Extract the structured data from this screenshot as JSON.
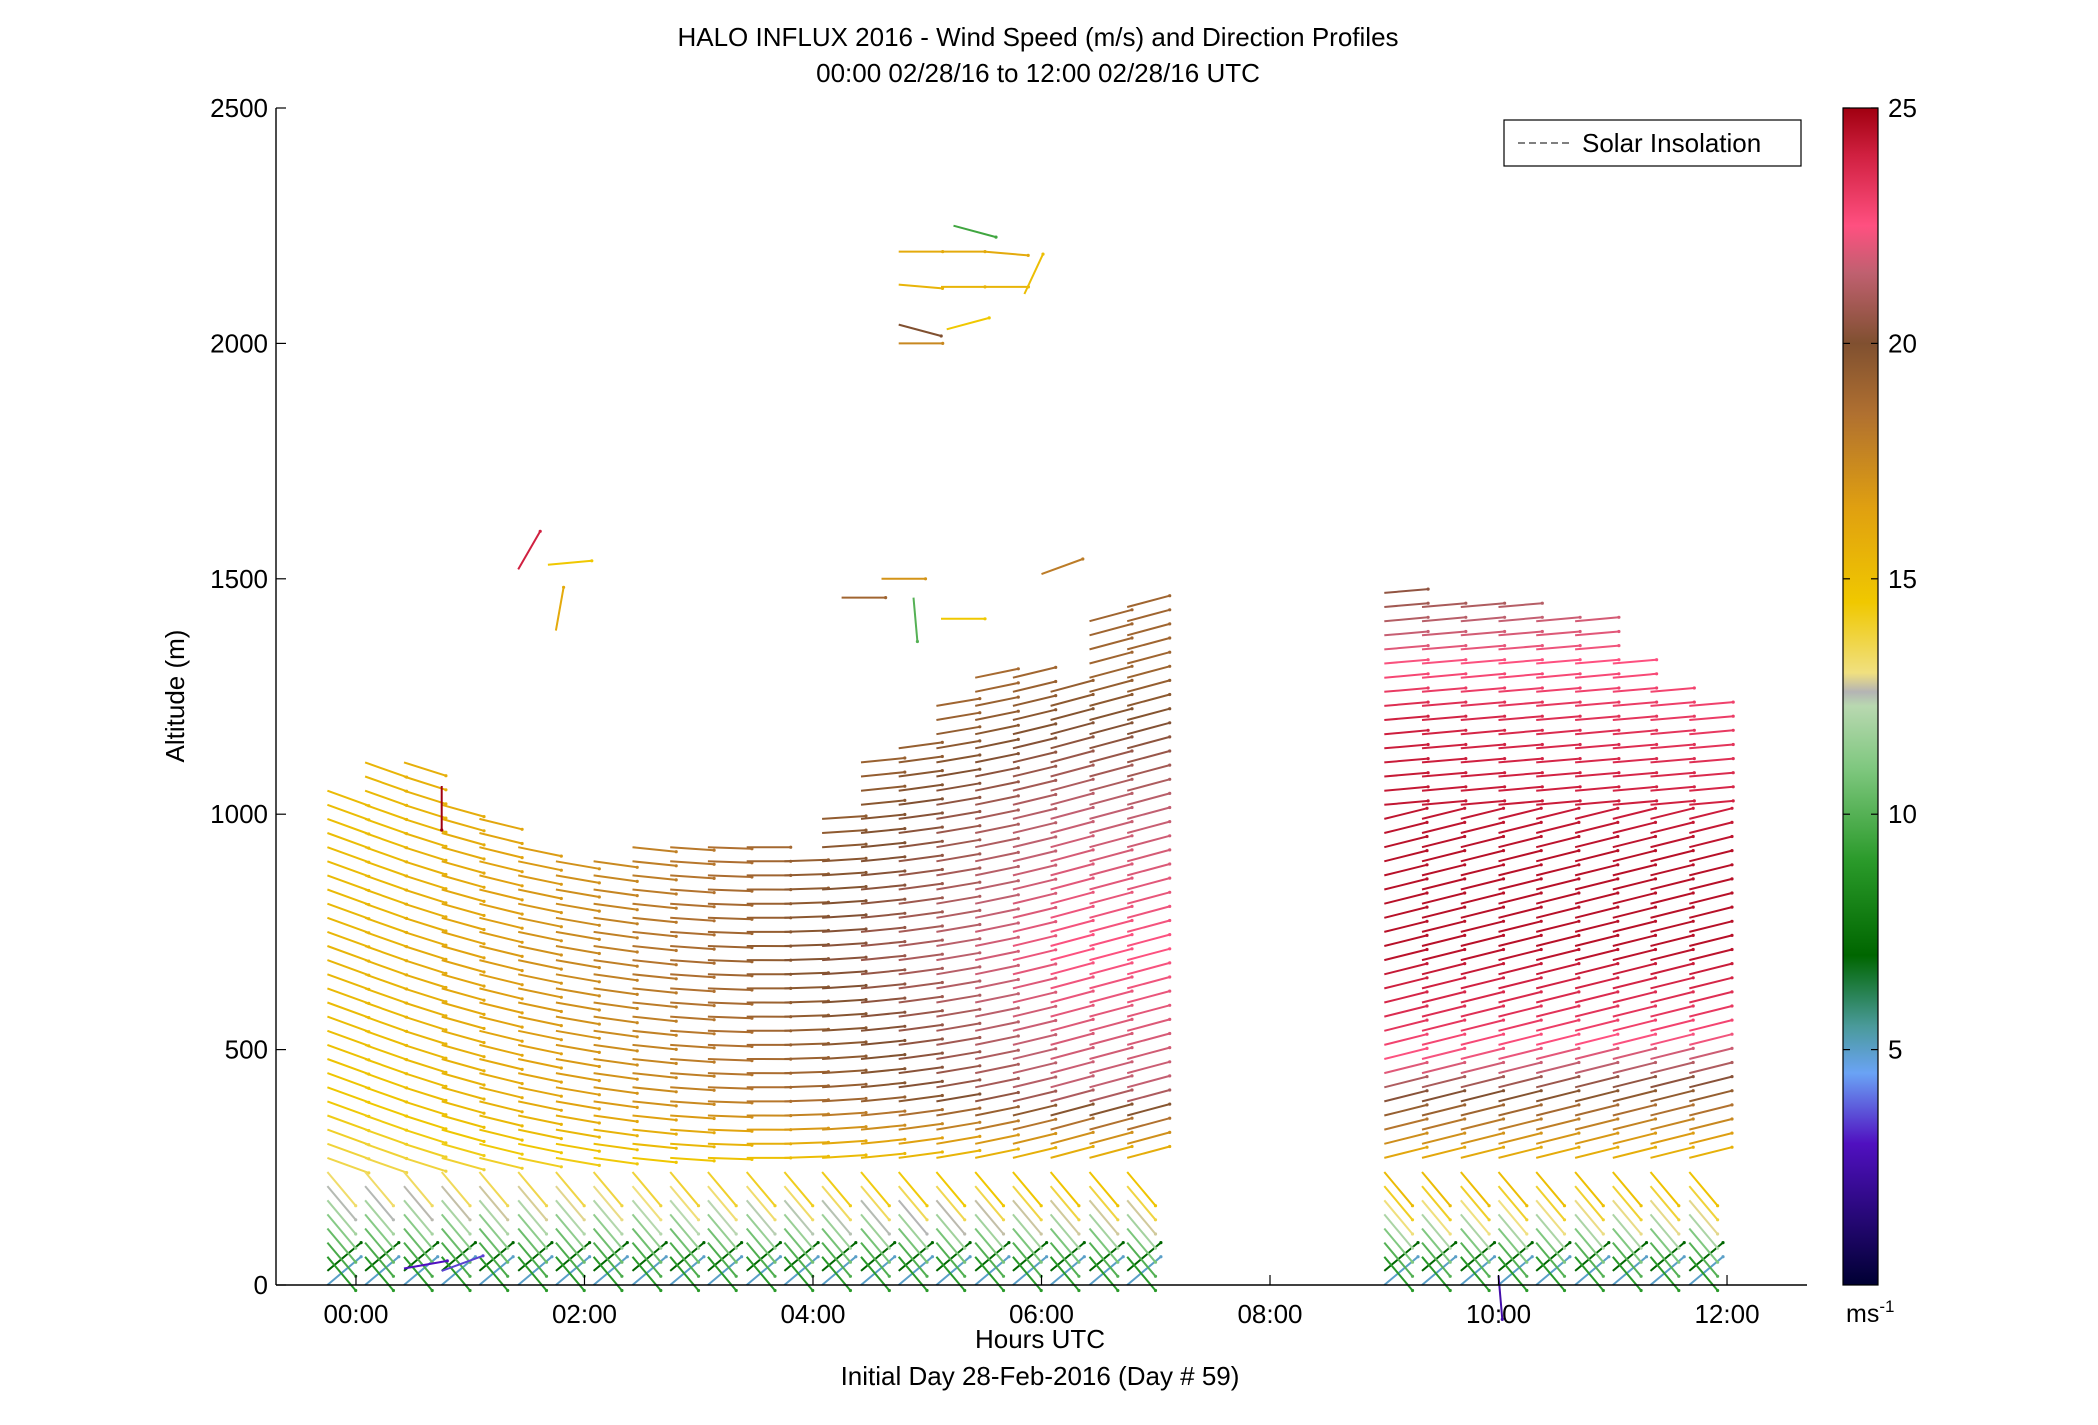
{
  "chart_data": {
    "type": "wind-barb-profile",
    "title": "HALO INFLUX 2016 - Wind Speed (m/s) and Direction Profiles",
    "subtitle": "00:00 02/28/16 to 12:00 02/28/16  UTC",
    "xlabel": "Hours UTC",
    "xlabel2": "Initial Day 28-Feb-2016 (Day # 59)",
    "ylabel": "Altitude (m)",
    "xlim_hours": [
      -0.7,
      12.7
    ],
    "ylim": [
      0,
      2500
    ],
    "xticks": [
      0,
      2,
      4,
      6,
      8,
      10,
      12
    ],
    "xtick_labels": [
      "00:00",
      "02:00",
      "04:00",
      "06:00",
      "08:00",
      "10:00",
      "12:00"
    ],
    "yticks": [
      0,
      500,
      1000,
      1500,
      2000,
      2500
    ],
    "ytick_labels": [
      "0",
      "500",
      "1000",
      "1500",
      "2000",
      "2500"
    ],
    "legend": {
      "label": "Solar Insolation",
      "style": "dashed",
      "color": "#808080",
      "position": "top-right"
    },
    "colorbar": {
      "range": [
        0,
        25
      ],
      "ticks": [
        5,
        10,
        15,
        20,
        25
      ],
      "tick_labels": [
        "5",
        "10",
        "15",
        "20",
        "25"
      ],
      "unit_label": "ms",
      "unit_exponent": "-1",
      "stops": [
        {
          "v": 0,
          "c": "#000033"
        },
        {
          "v": 3,
          "c": "#5010c0"
        },
        {
          "v": 4.5,
          "c": "#6aa3f5"
        },
        {
          "v": 5.5,
          "c": "#4a9a9a"
        },
        {
          "v": 7,
          "c": "#006600"
        },
        {
          "v": 9,
          "c": "#2a9a2a"
        },
        {
          "v": 11,
          "c": "#80c880"
        },
        {
          "v": 12.3,
          "c": "#b8d8b0"
        },
        {
          "v": 12.6,
          "c": "#b4b4b4"
        },
        {
          "v": 13,
          "c": "#f0e080"
        },
        {
          "v": 14.5,
          "c": "#f0c800"
        },
        {
          "v": 16.5,
          "c": "#e0a010"
        },
        {
          "v": 18.5,
          "c": "#b07030"
        },
        {
          "v": 20,
          "c": "#805030"
        },
        {
          "v": 21.5,
          "c": "#c06070"
        },
        {
          "v": 22.5,
          "c": "#ff5080"
        },
        {
          "v": 24,
          "c": "#d02040"
        },
        {
          "v": 25,
          "c": "#a00010"
        }
      ]
    },
    "profile_times_hours": [
      -0.25,
      0.08,
      0.42,
      0.75,
      1.08,
      1.42,
      1.75,
      2.08,
      2.42,
      2.75,
      3.08,
      3.42,
      3.75,
      4.08,
      4.42,
      4.75,
      5.08,
      5.42,
      5.75,
      6.08,
      6.42,
      6.75,
      9.0,
      9.33,
      9.67,
      10.0,
      10.33,
      10.67,
      11.0,
      11.33,
      11.67
    ],
    "profile_tops_m": [
      1070,
      1110,
      1125,
      1045,
      1000,
      950,
      910,
      910,
      940,
      930,
      950,
      940,
      920,
      1000,
      1110,
      1150,
      1240,
      1290,
      1290,
      1280,
      1410,
      1450,
      1490,
      1450,
      1450,
      1450,
      1410,
      1410,
      1330,
      1285,
      1250
    ],
    "barb_spacing_m": 30,
    "speed_model": {
      "segment_1": {
        "t_range_hours": [
          -0.7,
          7.0
        ],
        "levels_m": [
          0,
          60,
          250,
          400,
          700,
          1000,
          1300
        ],
        "speed_at_0h": [
          5,
          9,
          13.5,
          14.5,
          15.5,
          15,
          16
        ],
        "speed_at_6h": [
          5,
          9,
          15,
          21.5,
          22.5,
          21.5,
          19
        ]
      },
      "segment_2": {
        "t_range_hours": [
          8.5,
          12.0
        ],
        "levels_m": [
          0,
          60,
          150,
          250,
          350,
          450,
          550,
          700,
          900,
          1200,
          1500
        ],
        "speed_at_9h": [
          5,
          9,
          12,
          15.5,
          19,
          22,
          23.5,
          24.5,
          24.5,
          24,
          20
        ],
        "speed_at_12h": [
          5,
          9,
          12,
          15,
          18,
          21,
          23,
          24.5,
          24.5,
          23,
          22
        ]
      }
    },
    "direction_model_deg": {
      "near_surface_below_60m": 230,
      "low_levels_below_250m": 320,
      "segment_1_at_0h": 290,
      "segment_1_at_6h": 255,
      "segment_2_mid": 256,
      "segment_2_above_1000m": 265
    },
    "isolated_barbs": [
      {
        "t": 0.75,
        "h": 1060,
        "speed": 25,
        "dir": 0
      },
      {
        "t": 1.42,
        "h": 1520,
        "speed": 24,
        "dir": 210
      },
      {
        "t": 1.68,
        "h": 1530,
        "speed": 14.5,
        "dir": 265
      },
      {
        "t": 1.75,
        "h": 1390,
        "speed": 16,
        "dir": 190
      },
      {
        "t": 4.25,
        "h": 1460,
        "speed": 19,
        "dir": 270
      },
      {
        "t": 4.6,
        "h": 1500,
        "speed": 17,
        "dir": 270
      },
      {
        "t": 4.88,
        "h": 1460,
        "speed": 10,
        "dir": 355
      },
      {
        "t": 5.12,
        "h": 1415,
        "speed": 14.5,
        "dir": 270
      },
      {
        "t": 4.75,
        "h": 2000,
        "speed": 17.5,
        "dir": 270
      },
      {
        "t": 4.75,
        "h": 2040,
        "speed": 20,
        "dir": 285
      },
      {
        "t": 5.17,
        "h": 2030,
        "speed": 14.5,
        "dir": 255
      },
      {
        "t": 4.75,
        "h": 2125,
        "speed": 15.5,
        "dir": 275
      },
      {
        "t": 5.12,
        "h": 2120,
        "speed": 15.5,
        "dir": 270
      },
      {
        "t": 5.5,
        "h": 2120,
        "speed": 15.5,
        "dir": 270
      },
      {
        "t": 5.85,
        "h": 2105,
        "speed": 15,
        "dir": 205
      },
      {
        "t": 4.75,
        "h": 2195,
        "speed": 16,
        "dir": 270
      },
      {
        "t": 5.12,
        "h": 2195,
        "speed": 16,
        "dir": 270
      },
      {
        "t": 5.5,
        "h": 2195,
        "speed": 16,
        "dir": 275
      },
      {
        "t": 5.23,
        "h": 2250,
        "speed": 9.5,
        "dir": 285
      },
      {
        "t": 6.0,
        "h": 1510,
        "speed": 18,
        "dir": 250
      },
      {
        "t": 0.42,
        "h": 35,
        "speed": 3,
        "dir": 260
      },
      {
        "t": 0.75,
        "h": 30,
        "speed": 3.5,
        "dir": 250
      },
      {
        "t": 10.0,
        "h": 20,
        "speed": 2.5,
        "dir": 355
      }
    ]
  }
}
